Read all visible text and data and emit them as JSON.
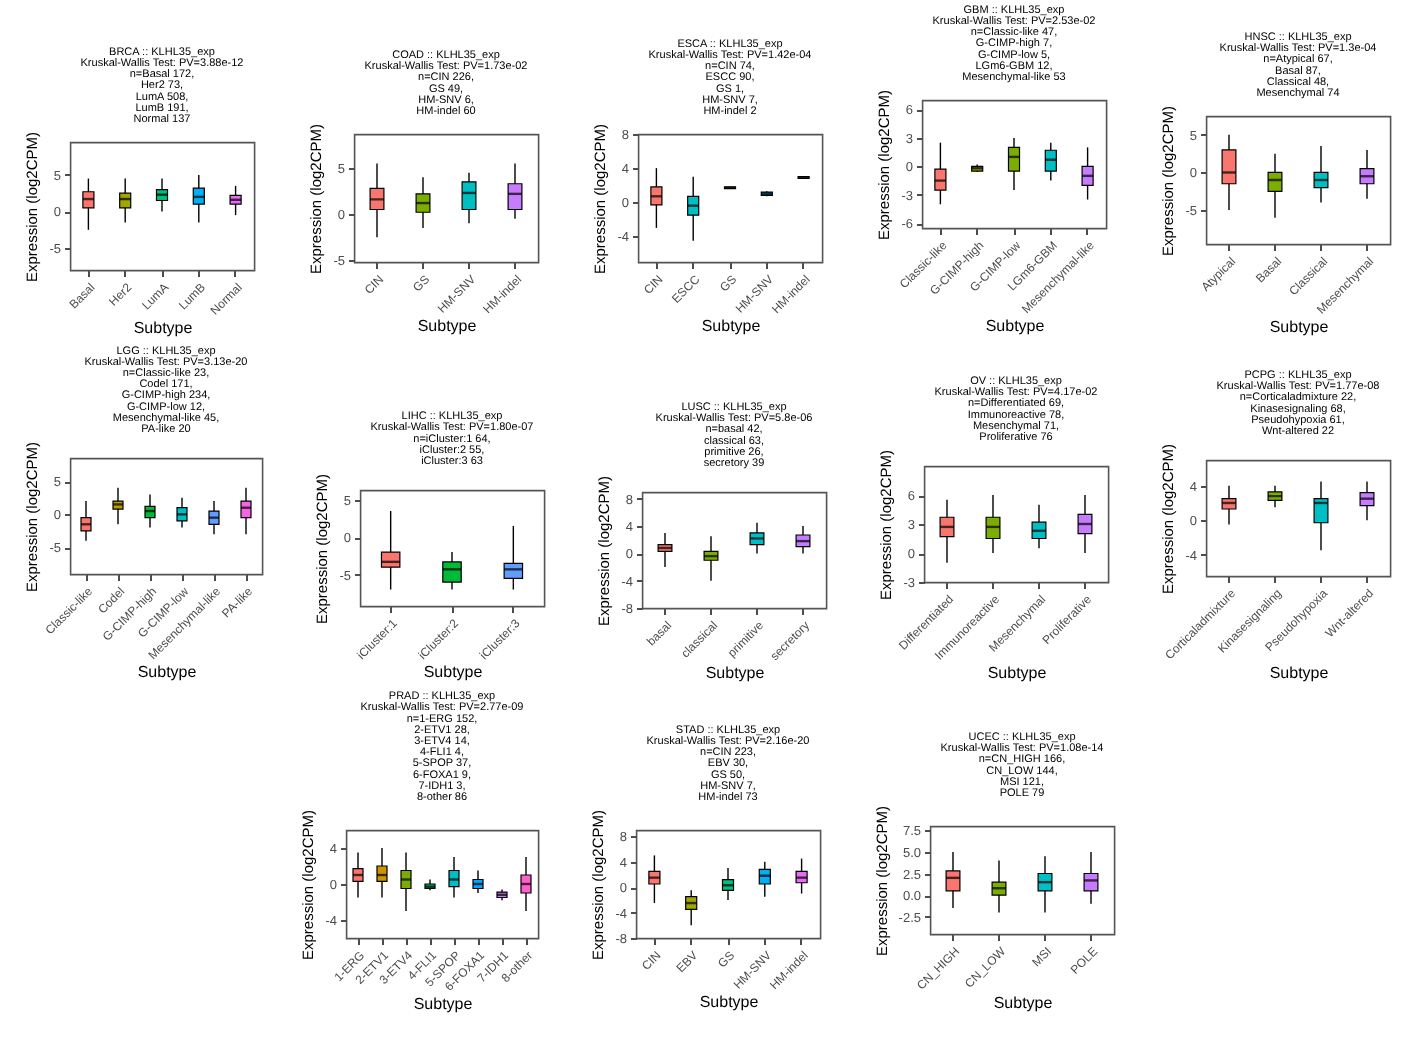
{
  "chart_data": [
    {
      "type": "box",
      "title": "BRCA :: KLHL35_exp",
      "subtitle": "Kruskal-Wallis Test: PV=3.88e-12\nn=Basal 172,\nHer2 73,\nLumA 508,\nLumB 191,\nNormal 137",
      "xlabel": "Subtype",
      "ylabel": "Expression (log2CPM)",
      "categories": [
        "Basal",
        "Her2",
        "LumA",
        "LumB",
        "Normal"
      ],
      "colors": [
        "#f8766d",
        "#a3a500",
        "#00bf7d",
        "#00b0f6",
        "#e76bf3"
      ],
      "ylim": [
        -8,
        9.5
      ],
      "yticks": [
        -5,
        0,
        5
      ],
      "grid": false,
      "boxes": [
        {
          "low": -2.5,
          "q1": 0.5,
          "median": 1.7,
          "q3": 2.7,
          "high": 4.5
        },
        {
          "low": -1.5,
          "q1": 0.5,
          "median": 1.7,
          "q3": 2.5,
          "high": 4.5
        },
        {
          "low": 0,
          "q1": 1.5,
          "median": 2.3,
          "q3": 3,
          "high": 4.5
        },
        {
          "low": -1.5,
          "q1": 1,
          "median": 2,
          "q3": 3.2,
          "high": 5
        },
        {
          "low": -0.5,
          "q1": 1,
          "median": 1.6,
          "q3": 2.2,
          "high": 3.5
        }
      ]
    },
    {
      "type": "box",
      "title": "COAD :: KLHL35_exp",
      "subtitle": "Kruskal-Wallis Test: PV=1.73e-02\nn=CIN 226,\nGS 49,\nHM-SNV 6,\nHM-indel 60",
      "xlabel": "Subtype",
      "ylabel": "Expression (log2CPM)",
      "categories": [
        "CIN",
        "GS",
        "HM-SNV",
        "HM-indel"
      ],
      "colors": [
        "#f8766d",
        "#7cae00",
        "#00bfc4",
        "#c77cff"
      ],
      "ylim": [
        -5.2,
        8.7
      ],
      "yticks": [
        -5,
        0,
        5
      ],
      "grid": false,
      "boxes": [
        {
          "low": -2.5,
          "q1": 0.5,
          "median": 1.6,
          "q3": 2.8,
          "high": 5.5
        },
        {
          "low": -1.5,
          "q1": 0.2,
          "median": 1.2,
          "q3": 2.2,
          "high": 4
        },
        {
          "low": -1,
          "q1": 0.5,
          "median": 2.3,
          "q3": 3.5,
          "high": 4.5
        },
        {
          "low": -0.5,
          "q1": 0.5,
          "median": 2.2,
          "q3": 3.3,
          "high": 5.5
        }
      ]
    },
    {
      "type": "box",
      "title": "ESCA :: KLHL35_exp",
      "subtitle": "Kruskal-Wallis Test: PV=1.42e-04\nn=CIN 74,\nESCC 90,\nGS 1,\nHM-SNV 7,\nHM-indel 2",
      "xlabel": "Subtype",
      "ylabel": "Expression (log2CPM)",
      "categories": [
        "CIN",
        "ESCC",
        "GS",
        "HM-SNV",
        "HM-indel"
      ],
      "colors": [
        "#f8766d",
        "#00bfc4",
        "#a3a500",
        "#00b0f6",
        "#e76bf3"
      ],
      "ylim": [
        -7,
        8
      ],
      "yticks": [
        -4,
        0,
        4,
        8
      ],
      "grid": false,
      "boxes": [
        {
          "low": -3,
          "q1": -0.3,
          "median": 0.7,
          "q3": 1.8,
          "high": 4
        },
        {
          "low": -4.5,
          "q1": -1.5,
          "median": -0.4,
          "q3": 0.7,
          "high": 3
        },
        {
          "low": 1.6,
          "q1": 1.6,
          "median": 1.7,
          "q3": 1.8,
          "high": 1.8
        },
        {
          "low": 0.7,
          "q1": 0.8,
          "median": 1,
          "q3": 1.2,
          "high": 1.3
        },
        {
          "low": 2.8,
          "q1": 2.8,
          "median": 2.9,
          "q3": 3,
          "high": 3
        }
      ]
    },
    {
      "type": "box",
      "title": "GBM :: KLHL35_exp",
      "subtitle": "Kruskal-Wallis Test: PV=2.53e-02\nn=Classic-like 47,\nG-CIMP-high 7,\nG-CIMP-low 5,\nLGm6-GBM 12,\nMesenchymal-like 53",
      "xlabel": "Subtype",
      "ylabel": "Expression (log2CPM)",
      "categories": [
        "Classic-like",
        "G-CIMP-high",
        "G-CIMP-low",
        "LGm6-GBM",
        "Mesenchymal-like"
      ],
      "colors": [
        "#f8766d",
        "#a3a500",
        "#7cae00",
        "#00bfc4",
        "#c77cff"
      ],
      "ylim": [
        -6.5,
        7
      ],
      "yticks": [
        -6,
        -3,
        0,
        3,
        6
      ],
      "grid": false,
      "boxes": [
        {
          "low": -4,
          "q1": -2.5,
          "median": -1.5,
          "q3": -0.3,
          "high": 2.5
        },
        {
          "low": -0.6,
          "q1": -0.5,
          "median": -0.2,
          "q3": 0,
          "high": 0.2
        },
        {
          "low": -2.5,
          "q1": -0.5,
          "median": 1,
          "q3": 2,
          "high": 3
        },
        {
          "low": -1.5,
          "q1": -0.5,
          "median": 0.7,
          "q3": 1.7,
          "high": 2.5
        },
        {
          "low": -3.5,
          "q1": -2,
          "median": -1,
          "q3": 0,
          "high": 2
        }
      ]
    },
    {
      "type": "box",
      "title": "HNSC :: KLHL35_exp",
      "subtitle": "Kruskal-Wallis Test: PV=1.3e-04\nn=Atypical 67,\nBasal 87,\nClassical 48,\nMesenchymal 74",
      "xlabel": "Subtype",
      "ylabel": "Expression (log2CPM)",
      "categories": [
        "Atypical",
        "Basal",
        "Classical",
        "Mesenchymal"
      ],
      "colors": [
        "#f8766d",
        "#7cae00",
        "#00bfc4",
        "#c77cff"
      ],
      "ylim": [
        -9.5,
        7.5
      ],
      "yticks": [
        -5,
        0,
        5
      ],
      "grid": false,
      "boxes": [
        {
          "low": -5,
          "q1": -1.5,
          "median": 0,
          "q3": 3,
          "high": 5
        },
        {
          "low": -6,
          "q1": -2.5,
          "median": -1,
          "q3": 0,
          "high": 2.5
        },
        {
          "low": -4,
          "q1": -2,
          "median": -1,
          "q3": 0,
          "high": 3.5
        },
        {
          "low": -3.5,
          "q1": -1.5,
          "median": -0.5,
          "q3": 0.5,
          "high": 3
        }
      ]
    },
    {
      "type": "box",
      "title": "LGG :: KLHL35_exp",
      "subtitle": "Kruskal-Wallis Test: PV=3.13e-20\nn=Classic-like 23,\nCodel 171,\nG-CIMP-high 234,\nG-CIMP-low 12,\nMesenchymal-like 45,\nPA-like 20",
      "xlabel": "Subtype",
      "ylabel": "Expression (log2CPM)",
      "categories": [
        "Classic-like",
        "Codel",
        "G-CIMP-high",
        "G-CIMP-low",
        "Mesenchymal-like",
        "PA-like"
      ],
      "colors": [
        "#f8766d",
        "#b79f00",
        "#00ba38",
        "#00bfc4",
        "#619cff",
        "#f564e3"
      ],
      "ylim": [
        -9,
        8.5
      ],
      "yticks": [
        -5,
        0,
        5
      ],
      "grid": false,
      "boxes": [
        {
          "low": -4,
          "q1": -2.5,
          "median": -1.5,
          "q3": -0.5,
          "high": 2
        },
        {
          "low": -1.5,
          "q1": 0.8,
          "median": 1.5,
          "q3": 2,
          "high": 4
        },
        {
          "low": -2,
          "q1": -0.5,
          "median": 0.5,
          "q3": 1.2,
          "high": 3
        },
        {
          "low": -2,
          "q1": -1,
          "median": 0,
          "q3": 1,
          "high": 2.5
        },
        {
          "low": -3,
          "q1": -1.5,
          "median": -0.5,
          "q3": 0.5,
          "high": 2
        },
        {
          "low": -3,
          "q1": -0.5,
          "median": 1,
          "q3": 2,
          "high": 4
        }
      ]
    },
    {
      "type": "box",
      "title": "LIHC :: KLHL35_exp",
      "subtitle": "Kruskal-Wallis Test: PV=1.80e-07\nn=iCluster:1 64,\niCluster:2 55,\niCluster:3 63",
      "xlabel": "Subtype",
      "ylabel": "Expression (log2CPM)",
      "categories": [
        "iCluster:1",
        "iCluster:2",
        "iCluster:3"
      ],
      "colors": [
        "#f8766d",
        "#00ba38",
        "#619cff"
      ],
      "ylim": [
        -9.2,
        6.3
      ],
      "yticks": [
        -5,
        0,
        5
      ],
      "grid": false,
      "boxes": [
        {
          "low": -7,
          "q1": -4,
          "median": -3.3,
          "q3": -2,
          "high": 3.5
        },
        {
          "low": -7,
          "q1": -6,
          "median": -4.3,
          "q3": -3.3,
          "high": -2
        },
        {
          "low": -7,
          "q1": -5.5,
          "median": -4.3,
          "q3": -3.5,
          "high": 1.5
        }
      ]
    },
    {
      "type": "box",
      "title": "LUSC :: KLHL35_exp",
      "subtitle": "Kruskal-Wallis Test: PV=5.8e-06\nn=basal 42,\nclassical 63,\nprimitive 26,\nsecretory 39",
      "xlabel": "Subtype",
      "ylabel": "Expression (log2CPM)",
      "categories": [
        "basal",
        "classical",
        "primitive",
        "secretory"
      ],
      "colors": [
        "#f8766d",
        "#7cae00",
        "#00bfc4",
        "#c77cff"
      ],
      "ylim": [
        -8,
        9
      ],
      "yticks": [
        -8,
        -4,
        0,
        4,
        8
      ],
      "grid": false,
      "boxes": [
        {
          "low": -2,
          "q1": 0.3,
          "median": 0.8,
          "q3": 1.3,
          "high": 3
        },
        {
          "low": -4,
          "q1": -1,
          "median": -0.4,
          "q3": 0.3,
          "high": 2.5
        },
        {
          "low": 0,
          "q1": 1.3,
          "median": 2.2,
          "q3": 3,
          "high": 4.5
        },
        {
          "low": 0,
          "q1": 1,
          "median": 1.8,
          "q3": 2.7,
          "high": 4
        }
      ]
    },
    {
      "type": "box",
      "title": "OV :: KLHL35_exp",
      "subtitle": "Kruskal-Wallis Test: PV=4.17e-02\nn=Differentiated 69,\nImmunoreactive 78,\nMesenchymal 71,\nProliferative 76",
      "xlabel": "Subtype",
      "ylabel": "Expression (log2CPM)",
      "categories": [
        "Differentiated",
        "Immunoreactive",
        "Mesenchymal",
        "Proliferative"
      ],
      "colors": [
        "#f8766d",
        "#7cae00",
        "#00bfc4",
        "#c77cff"
      ],
      "ylim": [
        -3,
        9
      ],
      "yticks": [
        -3,
        0,
        3,
        6
      ],
      "grid": false,
      "boxes": [
        {
          "low": -1,
          "q1": 1.7,
          "median": 2.7,
          "q3": 3.7,
          "high": 5.5
        },
        {
          "low": 0,
          "q1": 1.5,
          "median": 2.7,
          "q3": 3.7,
          "high": 6
        },
        {
          "low": 0.5,
          "q1": 1.5,
          "median": 2.3,
          "q3": 3.2,
          "high": 5
        },
        {
          "low": 0,
          "q1": 2,
          "median": 3,
          "q3": 4,
          "high": 6
        }
      ]
    },
    {
      "type": "box",
      "title": "PCPG :: KLHL35_exp",
      "subtitle": "Kruskal-Wallis Test: PV=1.77e-08\nn=Corticaladmixture 22,\nKinasesignaling 68,\nPseudohypoxia 61,\nWnt-altered 22",
      "xlabel": "Subtype",
      "ylabel": "Expression (log2CPM)",
      "categories": [
        "Corticaladmixture",
        "Kinasesignaling",
        "Pseudohypoxia",
        "Wnt-altered"
      ],
      "colors": [
        "#f8766d",
        "#7cae00",
        "#00bfc4",
        "#c77cff"
      ],
      "ylim": [
        -6.5,
        7
      ],
      "yticks": [
        -4,
        0,
        4
      ],
      "grid": false,
      "boxes": [
        {
          "low": -0.5,
          "q1": 1.3,
          "median": 2,
          "q3": 2.5,
          "high": 4
        },
        {
          "low": 1.5,
          "q1": 2.3,
          "median": 2.8,
          "q3": 3.3,
          "high": 4
        },
        {
          "low": -3.5,
          "q1": -0.3,
          "median": 2,
          "q3": 2.5,
          "high": 4.5
        },
        {
          "low": 0,
          "q1": 1.7,
          "median": 2.5,
          "q3": 3.2,
          "high": 4.5
        }
      ]
    },
    {
      "type": "box",
      "title": "PRAD :: KLHL35_exp",
      "subtitle": "Kruskal-Wallis Test: PV=2.77e-09\nn=1-ERG 152,\n2-ETV1 28,\n3-ETV4 14,\n4-FLI1 4,\n5-SPOP 37,\n6-FOXA1 9,\n7-IDH1 3,\n8-other 86",
      "xlabel": "Subtype",
      "ylabel": "Expression (log2CPM)",
      "categories": [
        "1-ERG",
        "2-ETV1",
        "3-ETV4",
        "4-FLI1",
        "5-SPOP",
        "6-FOXA1",
        "7-IDH1",
        "8-other"
      ],
      "colors": [
        "#f8766d",
        "#cd9600",
        "#7cae00",
        "#00be67",
        "#00bfc4",
        "#00a9ff",
        "#c77cff",
        "#ff61cc"
      ],
      "ylim": [
        -6,
        6
      ],
      "yticks": [
        -4,
        0,
        4
      ],
      "grid": false,
      "boxes": [
        {
          "low": -1.5,
          "q1": 0.3,
          "median": 1,
          "q3": 1.7,
          "high": 3.5
        },
        {
          "low": -1.5,
          "q1": 0.3,
          "median": 1,
          "q3": 2,
          "high": 4
        },
        {
          "low": -3,
          "q1": -0.5,
          "median": 0.5,
          "q3": 1.5,
          "high": 3.5
        },
        {
          "low": -0.7,
          "q1": -0.5,
          "median": -0.3,
          "q3": 0,
          "high": 0.5
        },
        {
          "low": -1.5,
          "q1": -0.3,
          "median": 0.5,
          "q3": 1.5,
          "high": 3
        },
        {
          "low": -1,
          "q1": -0.5,
          "median": 0,
          "q3": 0.5,
          "high": 1.5
        },
        {
          "low": -1.8,
          "q1": -1.5,
          "median": -1.2,
          "q3": -0.9,
          "high": -0.6
        },
        {
          "low": -3,
          "q1": -1,
          "median": 0,
          "q3": 1,
          "high": 3
        }
      ]
    },
    {
      "type": "box",
      "title": "STAD :: KLHL35_exp",
      "subtitle": "Kruskal-Wallis Test: PV=2.16e-20\nn=CIN 223,\nEBV 30,\nGS 50,\nHM-SNV 7,\nHM-indel 73",
      "xlabel": "Subtype",
      "ylabel": "Expression (log2CPM)",
      "categories": [
        "CIN",
        "EBV",
        "GS",
        "HM-SNV",
        "HM-indel"
      ],
      "colors": [
        "#f8766d",
        "#a3a500",
        "#00bf7d",
        "#00b0f6",
        "#e76bf3"
      ],
      "ylim": [
        -8,
        9
      ],
      "yticks": [
        -8,
        -4,
        0,
        4,
        8
      ],
      "grid": false,
      "boxes": [
        {
          "low": -2.5,
          "q1": 0.5,
          "median": 1.5,
          "q3": 2.5,
          "high": 5
        },
        {
          "low": -6,
          "q1": -3.5,
          "median": -2.5,
          "q3": -1.5,
          "high": -0.5
        },
        {
          "low": -2,
          "q1": -0.5,
          "median": 0.3,
          "q3": 1.2,
          "high": 3
        },
        {
          "low": -1.5,
          "q1": 0.5,
          "median": 1.8,
          "q3": 2.8,
          "high": 4
        },
        {
          "low": -1,
          "q1": 0.7,
          "median": 1.5,
          "q3": 2.5,
          "high": 4.5
        }
      ]
    },
    {
      "type": "box",
      "title": "UCEC :: KLHL35_exp",
      "subtitle": "Kruskal-Wallis Test: PV=1.08e-14\nn=CN_HIGH 166,\nCN_LOW 144,\nMSI 121,\nPOLE 79",
      "xlabel": "Subtype",
      "ylabel": "Expression (log2CPM)",
      "categories": [
        "CN_HIGH",
        "CN_LOW",
        "MSI",
        "POLE"
      ],
      "colors": [
        "#f8766d",
        "#7cae00",
        "#00bfc4",
        "#c77cff"
      ],
      "ylim": [
        -4.5,
        8
      ],
      "yticks": [
        -2.5,
        {
          "value": 0,
          "label": "0.0"
        },
        2.5,
        {
          "value": 5,
          "label": "5.0"
        },
        7.5
      ],
      "grid": false,
      "boxes": [
        {
          "low": -1.5,
          "q1": 0.5,
          "median": 2,
          "q3": 2.8,
          "high": 5
        },
        {
          "low": -2,
          "q1": 0,
          "median": 0.8,
          "q3": 1.5,
          "high": 4
        },
        {
          "low": -2,
          "q1": 0.5,
          "median": 1.5,
          "q3": 2.5,
          "high": 4.5
        },
        {
          "low": -1,
          "q1": 0.5,
          "median": 1.7,
          "q3": 2.5,
          "high": 5
        }
      ]
    }
  ]
}
